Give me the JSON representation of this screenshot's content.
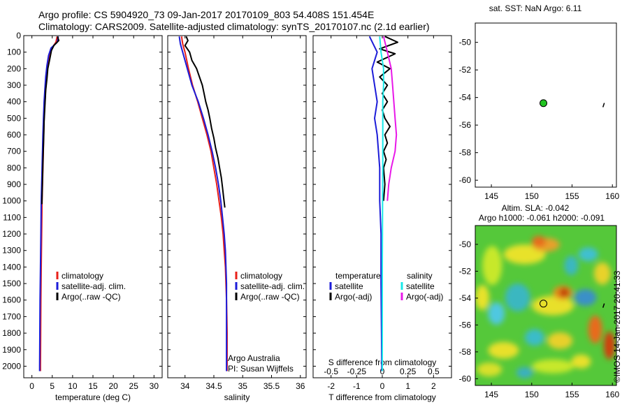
{
  "header": {
    "title1": "Argo profile: CS 5904920_73 09-Jan-2017 20170109_803 54.408S 151.454E",
    "title2": "Climatology: CARS2009. Satellite-adjusted climatology: synTS_20170107.nc (2.1d earlier)"
  },
  "copyright": "©IMOS 14-Jan-2017 20:41:33",
  "colors": {
    "climatology": "#e8201a",
    "satellite": "#1c1cd8",
    "argo": "#000000",
    "cyan": "#18e8e8",
    "magenta": "#e818e8"
  },
  "chart_data": [
    {
      "type": "line",
      "panel": "temperature",
      "xlabel": "temperature (deg C)",
      "xlim": [
        -2,
        32
      ],
      "xticks": [
        "0",
        "5",
        "10",
        "15",
        "20",
        "25",
        "30"
      ],
      "ylim": [
        0,
        2070
      ],
      "yticks": [
        "0",
        "100",
        "200",
        "300",
        "400",
        "500",
        "600",
        "700",
        "800",
        "900",
        "1000",
        "1100",
        "1200",
        "1300",
        "1400",
        "1500",
        "1600",
        "1700",
        "1800",
        "1900",
        "2000"
      ],
      "legend": [
        "climatology",
        "satellite-adj. clim.",
        "Argo(..raw -QC)"
      ],
      "series": [
        {
          "name": "climatology",
          "color": "#e8201a",
          "points": [
            [
              6.2,
              5
            ],
            [
              5.9,
              40
            ],
            [
              4.9,
              75
            ],
            [
              4.3,
              120
            ],
            [
              3.9,
              180
            ],
            [
              3.6,
              250
            ],
            [
              3.4,
              320
            ],
            [
              3.2,
              400
            ],
            [
              3.0,
              500
            ],
            [
              2.9,
              600
            ],
            [
              2.8,
              700
            ],
            [
              2.7,
              800
            ],
            [
              2.6,
              900
            ],
            [
              2.5,
              1000
            ],
            [
              2.4,
              1200
            ],
            [
              2.3,
              1400
            ],
            [
              2.2,
              1600
            ],
            [
              2.15,
              1800
            ],
            [
              2.1,
              2000
            ],
            [
              2.1,
              2030
            ]
          ]
        },
        {
          "name": "satellite-adj. clim.",
          "color": "#1c1cd8",
          "points": [
            [
              6.5,
              5
            ],
            [
              6.2,
              40
            ],
            [
              4.7,
              75
            ],
            [
              4.1,
              120
            ],
            [
              3.7,
              180
            ],
            [
              3.4,
              250
            ],
            [
              3.2,
              320
            ],
            [
              3.0,
              400
            ],
            [
              2.85,
              500
            ],
            [
              2.7,
              600
            ],
            [
              2.6,
              700
            ],
            [
              2.5,
              800
            ],
            [
              2.4,
              900
            ],
            [
              2.3,
              1000
            ],
            [
              2.2,
              1200
            ],
            [
              2.1,
              1400
            ],
            [
              2.0,
              1600
            ],
            [
              1.95,
              1800
            ],
            [
              1.9,
              2000
            ],
            [
              1.9,
              2030
            ]
          ]
        },
        {
          "name": "Argo(..raw -QC)",
          "color": "#000000",
          "points": [
            [
              6.3,
              5
            ],
            [
              6.6,
              30
            ],
            [
              5.4,
              60
            ],
            [
              4.8,
              90
            ],
            [
              4.4,
              140
            ],
            [
              3.9,
              200
            ],
            [
              3.7,
              260
            ],
            [
              3.4,
              330
            ],
            [
              3.2,
              420
            ],
            [
              3.0,
              520
            ],
            [
              2.9,
              620
            ],
            [
              2.75,
              720
            ],
            [
              2.65,
              820
            ],
            [
              2.55,
              920
            ],
            [
              2.45,
              1020
            ]
          ]
        }
      ]
    },
    {
      "type": "line",
      "panel": "salinity",
      "xlabel": "salinity",
      "xlim": [
        33.7,
        36.1
      ],
      "xticks": [
        "34",
        "34.5",
        "35",
        "35.5",
        "36"
      ],
      "ylim": [
        0,
        2070
      ],
      "legend": [
        "climatology",
        "satellite-adj. clim.",
        "Argo(..raw -QC)"
      ],
      "annotation": [
        "Argo Australia",
        "PI: Susan Wijffels"
      ],
      "series": [
        {
          "name": "climatology",
          "color": "#e8201a",
          "points": [
            [
              33.94,
              5
            ],
            [
              33.96,
              50
            ],
            [
              34.0,
              100
            ],
            [
              34.06,
              200
            ],
            [
              34.13,
              300
            ],
            [
              34.22,
              400
            ],
            [
              34.3,
              500
            ],
            [
              34.38,
              600
            ],
            [
              34.45,
              700
            ],
            [
              34.5,
              800
            ],
            [
              34.55,
              900
            ],
            [
              34.59,
              1000
            ],
            [
              34.63,
              1100
            ],
            [
              34.66,
              1200
            ],
            [
              34.68,
              1300
            ],
            [
              34.7,
              1400
            ],
            [
              34.71,
              1500
            ],
            [
              34.72,
              1600
            ],
            [
              34.725,
              1700
            ],
            [
              34.73,
              1800
            ],
            [
              34.73,
              1900
            ],
            [
              34.73,
              2030
            ]
          ]
        },
        {
          "name": "satellite-adj. clim.",
          "color": "#1c1cd8",
          "points": [
            [
              33.9,
              5
            ],
            [
              33.92,
              50
            ],
            [
              33.96,
              100
            ],
            [
              34.04,
              200
            ],
            [
              34.12,
              300
            ],
            [
              34.23,
              400
            ],
            [
              34.32,
              500
            ],
            [
              34.4,
              600
            ],
            [
              34.47,
              700
            ],
            [
              34.53,
              800
            ],
            [
              34.58,
              900
            ],
            [
              34.62,
              1000
            ],
            [
              34.65,
              1100
            ],
            [
              34.68,
              1200
            ],
            [
              34.7,
              1300
            ],
            [
              34.71,
              1400
            ],
            [
              34.72,
              1500
            ],
            [
              34.72,
              1600
            ],
            [
              34.72,
              1700
            ],
            [
              34.72,
              1800
            ],
            [
              34.72,
              1900
            ],
            [
              34.72,
              2030
            ]
          ]
        },
        {
          "name": "Argo(..raw -QC)",
          "color": "#000000",
          "points": [
            [
              34.02,
              5
            ],
            [
              34.05,
              30
            ],
            [
              34.0,
              60
            ],
            [
              34.08,
              100
            ],
            [
              34.12,
              150
            ],
            [
              34.2,
              200
            ],
            [
              34.26,
              260
            ],
            [
              34.3,
              300
            ],
            [
              34.33,
              350
            ],
            [
              34.36,
              400
            ],
            [
              34.4,
              450
            ],
            [
              34.43,
              500
            ],
            [
              34.46,
              560
            ],
            [
              34.5,
              620
            ],
            [
              34.53,
              680
            ],
            [
              34.57,
              740
            ],
            [
              34.6,
              800
            ],
            [
              34.63,
              860
            ],
            [
              34.65,
              920
            ],
            [
              34.67,
              980
            ],
            [
              34.69,
              1040
            ]
          ]
        }
      ]
    },
    {
      "type": "line",
      "panel": "difference",
      "xlabel": "T difference from climatology",
      "xlabel_top": "S difference from climatology",
      "xlim": [
        -2.7,
        2.7
      ],
      "xticks_T": [
        "-2",
        "-1",
        "0",
        "1",
        "2"
      ],
      "xticks_S": [
        "-0.5",
        "-0.25",
        "0",
        "0.25",
        "0.5"
      ],
      "ylim": [
        0,
        2070
      ],
      "legend": {
        "temperature": [
          "temperature",
          "satellite",
          "Argo(-adj)"
        ],
        "salinity": [
          "salinity",
          "satellite",
          "Argo(-adj)"
        ]
      },
      "series": [
        {
          "name": "temperature satellite",
          "color": "#1c1cd8",
          "points": [
            [
              -0.5,
              5
            ],
            [
              -0.2,
              100
            ],
            [
              -0.4,
              200
            ],
            [
              -0.3,
              300
            ],
            [
              -0.2,
              400
            ],
            [
              -0.3,
              500
            ],
            [
              -0.2,
              600
            ],
            [
              -0.15,
              700
            ],
            [
              -0.1,
              800
            ],
            [
              -0.1,
              1000
            ],
            [
              -0.05,
              1200
            ],
            [
              -0.05,
              1500
            ],
            [
              -0.03,
              1800
            ],
            [
              -0.02,
              2030
            ]
          ]
        },
        {
          "name": "temperature Argo(-adj)",
          "color": "#000000",
          "points": [
            [
              0.1,
              5
            ],
            [
              0.6,
              40
            ],
            [
              -0.1,
              80
            ],
            [
              0.5,
              110
            ],
            [
              -0.2,
              160
            ],
            [
              0.3,
              200
            ],
            [
              -0.1,
              250
            ],
            [
              0.2,
              300
            ],
            [
              0.0,
              350
            ],
            [
              0.2,
              400
            ],
            [
              0.0,
              450
            ],
            [
              0.1,
              500
            ],
            [
              0.3,
              550
            ],
            [
              0.1,
              600
            ],
            [
              0.2,
              650
            ],
            [
              0.05,
              700
            ],
            [
              0.15,
              750
            ],
            [
              0.05,
              800
            ],
            [
              0.1,
              900
            ],
            [
              0.05,
              1000
            ]
          ]
        },
        {
          "name": "salinity satellite",
          "color": "#18e8e8",
          "points": [
            [
              -0.1,
              5
            ],
            [
              -0.05,
              100
            ],
            [
              0.05,
              200
            ],
            [
              0.05,
              300
            ],
            [
              0.02,
              400
            ],
            [
              0.02,
              600
            ],
            [
              0.02,
              800
            ],
            [
              0.01,
              1000
            ],
            [
              0.0,
              1400
            ],
            [
              0.0,
              2030
            ]
          ]
        },
        {
          "name": "salinity Argo(-adj)",
          "color": "#e818e8",
          "points": [
            [
              0.05,
              5
            ],
            [
              0.2,
              100
            ],
            [
              0.35,
              200
            ],
            [
              0.4,
              300
            ],
            [
              0.45,
              400
            ],
            [
              0.5,
              500
            ],
            [
              0.55,
              600
            ],
            [
              0.5,
              700
            ],
            [
              0.35,
              800
            ],
            [
              0.25,
              900
            ],
            [
              0.2,
              1000
            ]
          ]
        }
      ]
    },
    {
      "type": "scatter",
      "panel": "map-sst",
      "title": "sat. SST: NaN Argo: 6.11",
      "xlim": [
        143,
        160.5
      ],
      "ylim": [
        -60.5,
        -48.6
      ],
      "xticks": [
        "145",
        "150",
        "155",
        "160"
      ],
      "yticks": [
        "-50",
        "-52",
        "-54",
        "-56",
        "-58",
        "-60"
      ],
      "points": [
        {
          "x": 151.45,
          "y": -54.41
        }
      ]
    },
    {
      "type": "heatmap",
      "panel": "map-sla",
      "title1": "Altim. SLA: -0.042",
      "title2": "Argo h1000: -0.061 h2000: -0.091",
      "xlim": [
        143,
        160.5
      ],
      "ylim": [
        -60.5,
        -48.6
      ],
      "xticks": [
        "145",
        "150",
        "155",
        "160"
      ],
      "yticks": [
        "-50",
        "-52",
        "-54",
        "-56",
        "-58",
        "-60"
      ],
      "points": [
        {
          "x": 151.45,
          "y": -54.41
        }
      ]
    }
  ]
}
